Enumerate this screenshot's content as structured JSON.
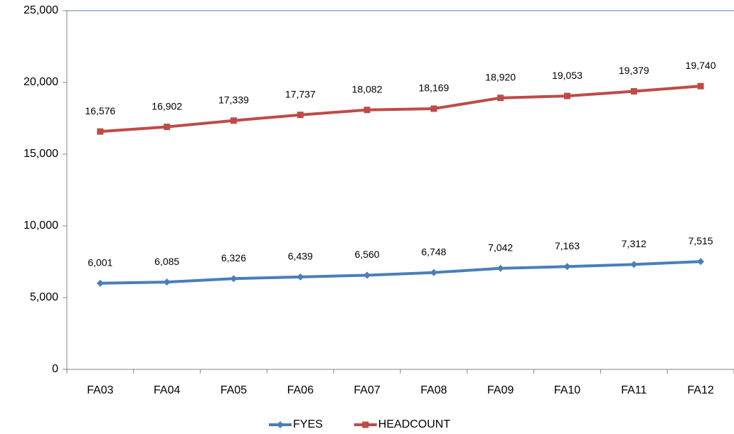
{
  "chart_data": {
    "type": "line",
    "categories": [
      "FA03",
      "FA04",
      "FA05",
      "FA06",
      "FA07",
      "FA08",
      "FA09",
      "FA10",
      "FA11",
      "FA12"
    ],
    "series": [
      {
        "name": "FYES",
        "color": "#4a7ebb",
        "marker": "diamond",
        "values": [
          6001,
          6085,
          6326,
          6439,
          6560,
          6748,
          7042,
          7163,
          7312,
          7515
        ],
        "value_labels": [
          "6,001",
          "6,085",
          "6,326",
          "6,439",
          "6,560",
          "6,748",
          "7,042",
          "7,163",
          "7,312",
          "7,515"
        ]
      },
      {
        "name": "HEADCOUNT",
        "color": "#be4b48",
        "marker": "square",
        "values": [
          16576,
          16902,
          17339,
          17737,
          18082,
          18169,
          18920,
          19053,
          19379,
          19740
        ],
        "value_labels": [
          "16,576",
          "16,902",
          "17,339",
          "17,737",
          "18,082",
          "18,169",
          "18,920",
          "19,053",
          "19,379",
          "19,740"
        ]
      }
    ],
    "ylim": [
      0,
      25000
    ],
    "yticks": [
      0,
      {
        "value": 5000,
        "label": "5,000"
      },
      {
        "value": 10000,
        "label": "10,000"
      },
      {
        "value": 15000,
        "label": "15,000"
      },
      {
        "value": 20000,
        "label": "20,000"
      },
      {
        "value": 25000,
        "label": "25,000"
      }
    ],
    "legend": "bottom"
  }
}
